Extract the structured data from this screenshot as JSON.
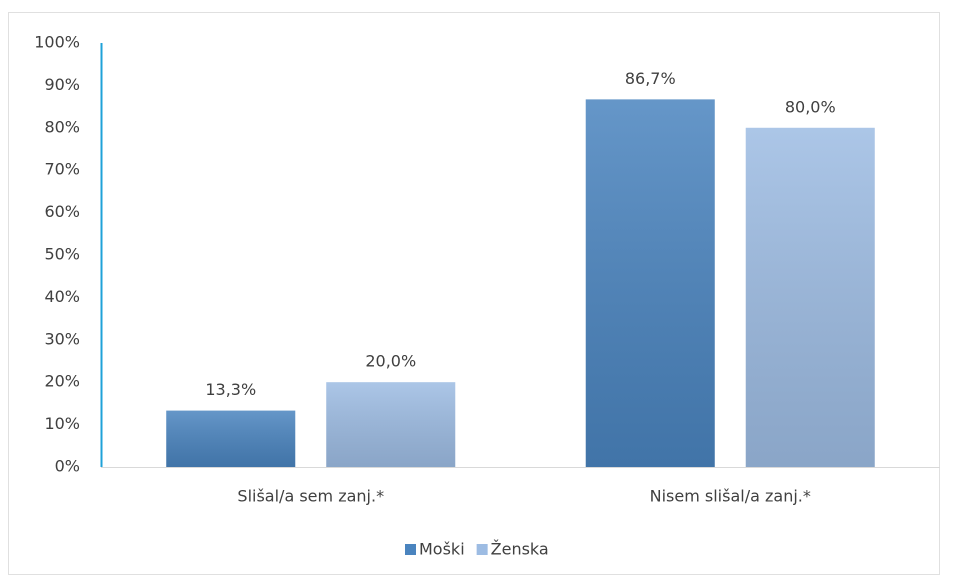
{
  "chart_data": {
    "type": "bar",
    "categories": [
      "Slišal/a sem zanj.*",
      "Nisem slišal/a zanj.*"
    ],
    "series": [
      {
        "name": "Moški",
        "color": "#4a84bf",
        "values": [
          13.3,
          86.7
        ],
        "value_labels": [
          "13,3%",
          "86,7%"
        ]
      },
      {
        "name": "Ženska",
        "color": "#9dbce3",
        "values": [
          20.0,
          80.0
        ],
        "value_labels": [
          "20,0%",
          "80,0%"
        ]
      }
    ],
    "ylim": [
      0,
      100
    ],
    "yticks": [
      {
        "value": 0,
        "label": "0%"
      },
      {
        "value": 10,
        "label": "10%"
      },
      {
        "value": 20,
        "label": "20%"
      },
      {
        "value": 30,
        "label": "30%"
      },
      {
        "value": 40,
        "label": "40%"
      },
      {
        "value": 50,
        "label": "50%"
      },
      {
        "value": 60,
        "label": "60%"
      },
      {
        "value": 70,
        "label": "70%"
      },
      {
        "value": 80,
        "label": "80%"
      },
      {
        "value": 90,
        "label": "90%"
      },
      {
        "value": 100,
        "label": "100%"
      }
    ],
    "grid": false,
    "legend": "bottom"
  }
}
